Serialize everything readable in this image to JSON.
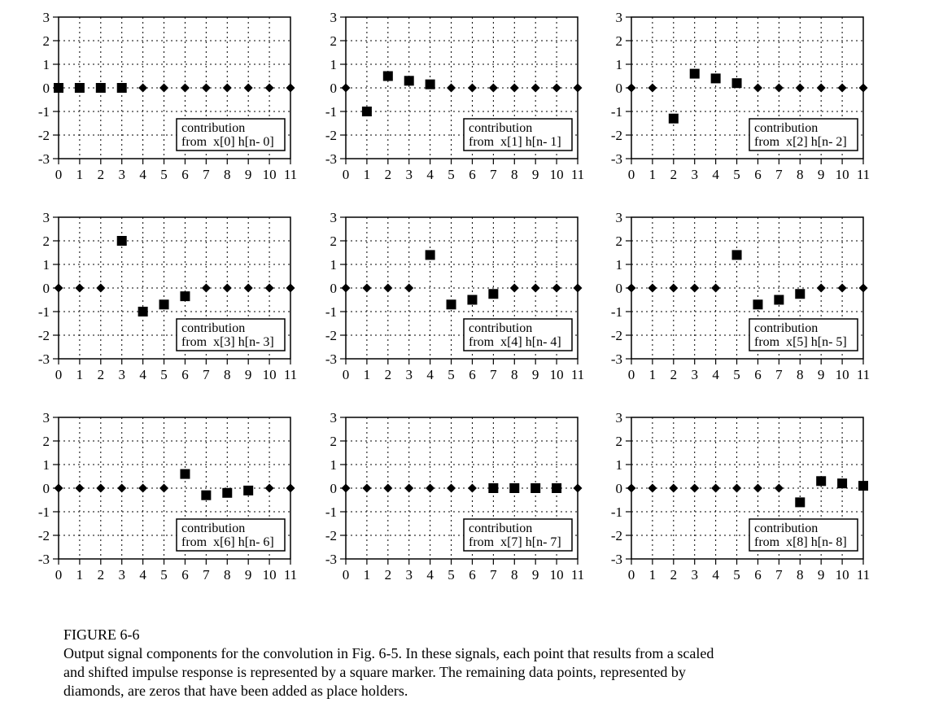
{
  "chart_data": [
    {
      "type": "scatter",
      "ylim": [
        -3,
        3
      ],
      "xlim": [
        0,
        11
      ],
      "xticks": [
        0,
        1,
        2,
        3,
        4,
        5,
        6,
        7,
        8,
        9,
        10,
        11
      ],
      "yticks": [
        3,
        2,
        1,
        0,
        -1,
        -2,
        -3
      ],
      "grid": true,
      "legend_lines": [
        "contribution",
        "from  x[0] h[n- 0]"
      ],
      "squares": [
        [
          0,
          0
        ],
        [
          1,
          0
        ],
        [
          2,
          0
        ],
        [
          3,
          0
        ]
      ],
      "diamonds": [
        [
          4,
          0
        ],
        [
          5,
          0
        ],
        [
          6,
          0
        ],
        [
          7,
          0
        ],
        [
          8,
          0
        ],
        [
          9,
          0
        ],
        [
          10,
          0
        ],
        [
          11,
          0
        ]
      ]
    },
    {
      "type": "scatter",
      "ylim": [
        -3,
        3
      ],
      "xlim": [
        0,
        11
      ],
      "xticks": [
        0,
        1,
        2,
        3,
        4,
        5,
        6,
        7,
        8,
        9,
        10,
        11
      ],
      "yticks": [
        3,
        2,
        1,
        0,
        -1,
        -2,
        -3
      ],
      "grid": true,
      "legend_lines": [
        "contribution",
        "from  x[1] h[n- 1]"
      ],
      "squares": [
        [
          1,
          -1.0
        ],
        [
          2,
          0.5
        ],
        [
          3,
          0.3
        ],
        [
          4,
          0.15
        ]
      ],
      "diamonds": [
        [
          0,
          0
        ],
        [
          5,
          0
        ],
        [
          6,
          0
        ],
        [
          7,
          0
        ],
        [
          8,
          0
        ],
        [
          9,
          0
        ],
        [
          10,
          0
        ],
        [
          11,
          0
        ]
      ]
    },
    {
      "type": "scatter",
      "ylim": [
        -3,
        3
      ],
      "xlim": [
        0,
        11
      ],
      "xticks": [
        0,
        1,
        2,
        3,
        4,
        5,
        6,
        7,
        8,
        9,
        10,
        11
      ],
      "yticks": [
        3,
        2,
        1,
        0,
        -1,
        -2,
        -3
      ],
      "grid": true,
      "legend_lines": [
        "contribution",
        "from  x[2] h[n- 2]"
      ],
      "squares": [
        [
          2,
          -1.3
        ],
        [
          3,
          0.6
        ],
        [
          4,
          0.4
        ],
        [
          5,
          0.2
        ]
      ],
      "diamonds": [
        [
          0,
          0
        ],
        [
          1,
          0
        ],
        [
          6,
          0
        ],
        [
          7,
          0
        ],
        [
          8,
          0
        ],
        [
          9,
          0
        ],
        [
          10,
          0
        ],
        [
          11,
          0
        ]
      ]
    },
    {
      "type": "scatter",
      "ylim": [
        -3,
        3
      ],
      "xlim": [
        0,
        11
      ],
      "xticks": [
        0,
        1,
        2,
        3,
        4,
        5,
        6,
        7,
        8,
        9,
        10,
        11
      ],
      "yticks": [
        3,
        2,
        1,
        0,
        -1,
        -2,
        -3
      ],
      "grid": true,
      "legend_lines": [
        "contribution",
        "from  x[3] h[n- 3]"
      ],
      "squares": [
        [
          3,
          2.0
        ],
        [
          4,
          -1.0
        ],
        [
          5,
          -0.7
        ],
        [
          6,
          -0.35
        ]
      ],
      "diamonds": [
        [
          0,
          0
        ],
        [
          1,
          0
        ],
        [
          2,
          0
        ],
        [
          7,
          0
        ],
        [
          8,
          0
        ],
        [
          9,
          0
        ],
        [
          10,
          0
        ],
        [
          11,
          0
        ]
      ]
    },
    {
      "type": "scatter",
      "ylim": [
        -3,
        3
      ],
      "xlim": [
        0,
        11
      ],
      "xticks": [
        0,
        1,
        2,
        3,
        4,
        5,
        6,
        7,
        8,
        9,
        10,
        11
      ],
      "yticks": [
        3,
        2,
        1,
        0,
        -1,
        -2,
        -3
      ],
      "grid": true,
      "legend_lines": [
        "contribution",
        "from  x[4] h[n- 4]"
      ],
      "squares": [
        [
          4,
          1.4
        ],
        [
          5,
          -0.7
        ],
        [
          6,
          -0.5
        ],
        [
          7,
          -0.25
        ]
      ],
      "diamonds": [
        [
          0,
          0
        ],
        [
          1,
          0
        ],
        [
          2,
          0
        ],
        [
          3,
          0
        ],
        [
          8,
          0
        ],
        [
          9,
          0
        ],
        [
          10,
          0
        ],
        [
          11,
          0
        ]
      ]
    },
    {
      "type": "scatter",
      "ylim": [
        -3,
        3
      ],
      "xlim": [
        0,
        11
      ],
      "xticks": [
        0,
        1,
        2,
        3,
        4,
        5,
        6,
        7,
        8,
        9,
        10,
        11
      ],
      "yticks": [
        3,
        2,
        1,
        0,
        -1,
        -2,
        -3
      ],
      "grid": true,
      "legend_lines": [
        "contribution",
        "from  x[5] h[n- 5]"
      ],
      "squares": [
        [
          5,
          1.4
        ],
        [
          6,
          -0.7
        ],
        [
          7,
          -0.5
        ],
        [
          8,
          -0.25
        ]
      ],
      "diamonds": [
        [
          0,
          0
        ],
        [
          1,
          0
        ],
        [
          2,
          0
        ],
        [
          3,
          0
        ],
        [
          4,
          0
        ],
        [
          9,
          0
        ],
        [
          10,
          0
        ],
        [
          11,
          0
        ]
      ]
    },
    {
      "type": "scatter",
      "ylim": [
        -3,
        3
      ],
      "xlim": [
        0,
        11
      ],
      "xticks": [
        0,
        1,
        2,
        3,
        4,
        5,
        6,
        7,
        8,
        9,
        10,
        11
      ],
      "yticks": [
        3,
        2,
        1,
        0,
        -1,
        -2,
        -3
      ],
      "grid": true,
      "legend_lines": [
        "contribution",
        "from  x[6] h[n- 6]"
      ],
      "squares": [
        [
          6,
          0.6
        ],
        [
          7,
          -0.3
        ],
        [
          8,
          -0.2
        ],
        [
          9,
          -0.1
        ]
      ],
      "diamonds": [
        [
          0,
          0
        ],
        [
          1,
          0
        ],
        [
          2,
          0
        ],
        [
          3,
          0
        ],
        [
          4,
          0
        ],
        [
          5,
          0
        ],
        [
          10,
          0
        ],
        [
          11,
          0
        ]
      ]
    },
    {
      "type": "scatter",
      "ylim": [
        -3,
        3
      ],
      "xlim": [
        0,
        11
      ],
      "xticks": [
        0,
        1,
        2,
        3,
        4,
        5,
        6,
        7,
        8,
        9,
        10,
        11
      ],
      "yticks": [
        3,
        2,
        1,
        0,
        -1,
        -2,
        -3
      ],
      "grid": true,
      "legend_lines": [
        "contribution",
        "from  x[7] h[n- 7]"
      ],
      "squares": [
        [
          7,
          0
        ],
        [
          8,
          0
        ],
        [
          9,
          0
        ],
        [
          10,
          0
        ]
      ],
      "diamonds": [
        [
          0,
          0
        ],
        [
          1,
          0
        ],
        [
          2,
          0
        ],
        [
          3,
          0
        ],
        [
          4,
          0
        ],
        [
          5,
          0
        ],
        [
          6,
          0
        ],
        [
          11,
          0
        ]
      ]
    },
    {
      "type": "scatter",
      "ylim": [
        -3,
        3
      ],
      "xlim": [
        0,
        11
      ],
      "xticks": [
        0,
        1,
        2,
        3,
        4,
        5,
        6,
        7,
        8,
        9,
        10,
        11
      ],
      "yticks": [
        3,
        2,
        1,
        0,
        -1,
        -2,
        -3
      ],
      "grid": true,
      "legend_lines": [
        "contribution",
        "from  x[8] h[n- 8]"
      ],
      "squares": [
        [
          8,
          -0.6
        ],
        [
          9,
          0.3
        ],
        [
          10,
          0.2
        ],
        [
          11,
          0.1
        ]
      ],
      "diamonds": [
        [
          0,
          0
        ],
        [
          1,
          0
        ],
        [
          2,
          0
        ],
        [
          3,
          0
        ],
        [
          4,
          0
        ],
        [
          5,
          0
        ],
        [
          6,
          0
        ],
        [
          7,
          0
        ]
      ]
    }
  ],
  "caption": {
    "title": "FIGURE 6-6",
    "lines": [
      "Output signal components for the convolution in Fig. 6-5.  In these signals, each point that results from a scaled",
      "and shifted impulse response is represented by a square marker.  The remaining data points, represented by",
      "diamonds, are zeros that have been added as place holders."
    ]
  }
}
